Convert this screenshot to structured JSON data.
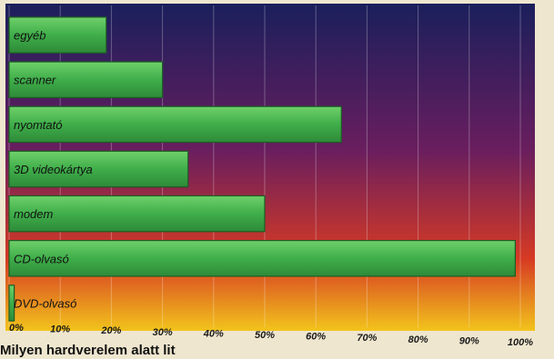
{
  "chart_data": {
    "type": "bar",
    "orientation": "horizontal",
    "categories": [
      "egyéb",
      "scanner",
      "nyomtató",
      "3D videokártya",
      "modem",
      "CD-olvasó",
      "DVD-olvasó"
    ],
    "values": [
      19,
      30,
      65,
      35,
      50,
      99,
      1
    ],
    "xlim": [
      0,
      100
    ],
    "x_ticks": [
      "0%",
      "10%",
      "20%",
      "30%",
      "40%",
      "50%",
      "60%",
      "70%",
      "80%",
      "90%",
      "100%"
    ],
    "grid": true,
    "title": "",
    "xlabel": "",
    "ylabel": "",
    "colors": {
      "bar_fill": "#3fae4a",
      "bar_stroke": "#1c5e24",
      "gradient_top": "#1a1f5c",
      "gradient_mid": "#6a1e5e",
      "gradient_low": "#d63a23",
      "gradient_bottom": "#f2c41c"
    }
  },
  "caption": {
    "text": "Milyen hardverelem alatt lit"
  }
}
